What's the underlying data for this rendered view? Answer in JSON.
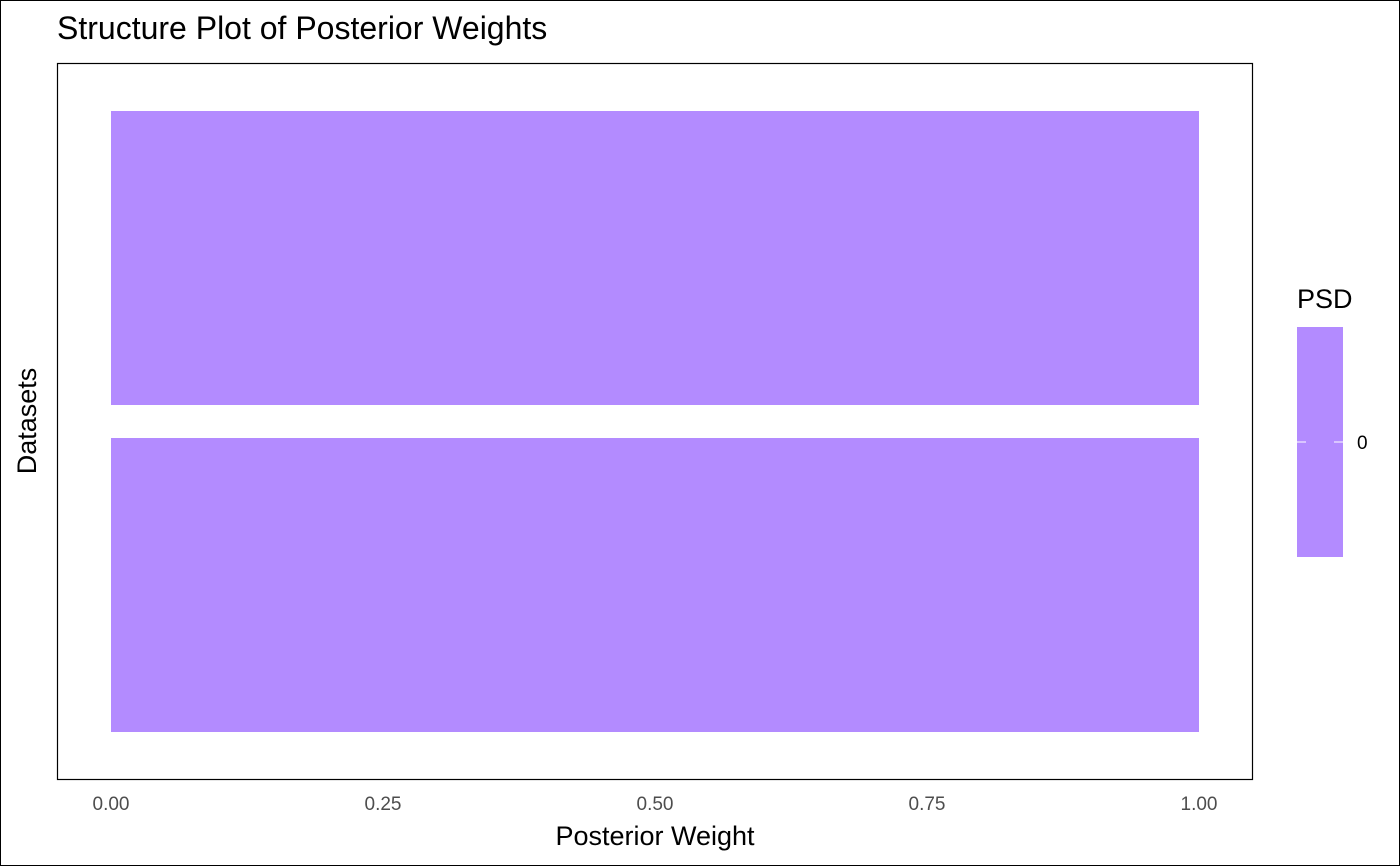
{
  "chart_data": {
    "type": "bar",
    "orientation": "horizontal",
    "stacked": true,
    "title": "Structure Plot of Posterior Weights",
    "xlabel": "Posterior Weight",
    "ylabel": "Datasets",
    "xlim": [
      0,
      1
    ],
    "x_ticks": [
      "0.00",
      "0.25",
      "0.50",
      "0.75",
      "1.00"
    ],
    "x_tick_values": [
      0,
      0.25,
      0.5,
      0.75,
      1.0
    ],
    "categories": [
      "",
      ""
    ],
    "series": [
      {
        "name": "0",
        "values": [
          1.0,
          1.0
        ],
        "color": "#B38BFF"
      }
    ],
    "legend": {
      "title": "PSD",
      "position": "right",
      "labels": [
        "0"
      ],
      "color": "#B38BFF"
    },
    "grid": false,
    "panel_border": true
  }
}
